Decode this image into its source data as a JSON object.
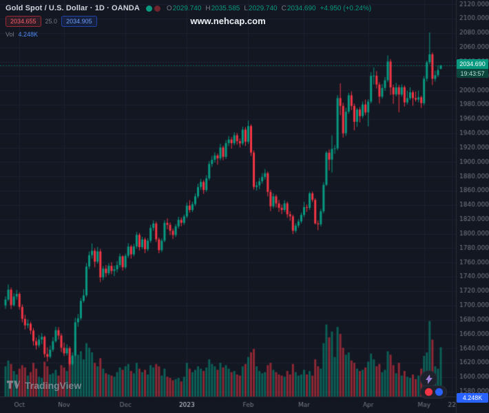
{
  "header": {
    "symbol_title": "Gold Spot / U.S. Dollar · 1D · OANDA",
    "ohlc": {
      "o_label": "O",
      "o": "2029.740",
      "h_label": "H",
      "h": "2035.585",
      "l_label": "L",
      "l": "2029.740",
      "c_label": "C",
      "c": "2034.690",
      "change": "+4.950 (+0.24%)"
    },
    "sell_price": "2034.655",
    "spread": "25.0",
    "buy_price": "2034.905",
    "vol_label": "Vol",
    "vol_value": "4.248K"
  },
  "watermark": "www.nehcap.com",
  "badges": {
    "last_price": "2034.690",
    "countdown": "19:43:57",
    "volume_axis": "4.248K"
  },
  "footer": {
    "logo_text": "TradingView"
  },
  "time_axis_labels": [
    {
      "label": "Oct",
      "i": 5,
      "bright": false
    },
    {
      "label": "Nov",
      "i": 21,
      "bright": false
    },
    {
      "label": "Dec",
      "i": 43,
      "bright": false
    },
    {
      "label": "2023",
      "i": 65,
      "bright": true
    },
    {
      "label": "Feb",
      "i": 87,
      "bright": false
    },
    {
      "label": "Mar",
      "i": 107,
      "bright": false
    },
    {
      "label": "Apr",
      "i": 130,
      "bright": false
    },
    {
      "label": "May",
      "i": 150,
      "bright": false
    },
    {
      "label": "22",
      "i": 160,
      "bright": false
    }
  ],
  "chart_data": {
    "type": "candlestick",
    "symbol": "XAUUSD",
    "interval": "1D",
    "exchange": "OANDA",
    "last_close": 2034.69,
    "price_axis": {
      "label_min": 1580,
      "label_max": 2120,
      "step": 20,
      "range": [
        1573,
        2126
      ],
      "decimals": 3
    },
    "volume_axis_max_k": 7,
    "colors": {
      "bg": "#131722",
      "up": "#089981",
      "down": "#f23645",
      "vol_up": "rgba(8,153,129,0.55)",
      "vol_down": "rgba(242,54,69,0.55)",
      "grid": "#1c2030",
      "axis_border": "#2a2e39",
      "axis_text": "#787b86",
      "axis_text_bright": "#d1d4dc",
      "accent_blue": "#2962ff"
    },
    "candles": [
      [
        1700.0,
        1712.5,
        1695.3,
        1708.2,
        2.6
      ],
      [
        1708.2,
        1729.4,
        1706.1,
        1722.0,
        3.1
      ],
      [
        1722.0,
        1724.8,
        1695.0,
        1700.3,
        2.8
      ],
      [
        1700.3,
        1717.2,
        1698.6,
        1712.4,
        2.2
      ],
      [
        1712.4,
        1721.9,
        1708.0,
        1716.1,
        1.9
      ],
      [
        1716.1,
        1718.3,
        1694.2,
        1698.0,
        2.4
      ],
      [
        1698.0,
        1701.5,
        1676.4,
        1681.2,
        2.7
      ],
      [
        1681.2,
        1686.9,
        1666.5,
        1672.3,
        2.5
      ],
      [
        1672.3,
        1680.7,
        1668.1,
        1674.5,
        1.8
      ],
      [
        1674.5,
        1677.2,
        1659.8,
        1665.0,
        2.1
      ],
      [
        1665.0,
        1668.4,
        1643.9,
        1650.2,
        2.9
      ],
      [
        1650.2,
        1655.1,
        1638.7,
        1644.3,
        2.4
      ],
      [
        1644.3,
        1658.6,
        1641.2,
        1652.4,
        1.7
      ],
      [
        1652.4,
        1661.5,
        1646.0,
        1656.2,
        1.6
      ],
      [
        1656.2,
        1658.0,
        1627.3,
        1632.1,
        3.0
      ],
      [
        1632.1,
        1641.6,
        1621.8,
        1628.4,
        2.6
      ],
      [
        1628.4,
        1644.0,
        1626.2,
        1638.3,
        1.9
      ],
      [
        1638.3,
        1655.8,
        1635.4,
        1650.1,
        2.0
      ],
      [
        1650.1,
        1670.3,
        1648.2,
        1665.4,
        2.3
      ],
      [
        1665.4,
        1669.8,
        1652.6,
        1658.0,
        1.8
      ],
      [
        1658.0,
        1661.2,
        1634.9,
        1641.0,
        2.7
      ],
      [
        1641.0,
        1648.3,
        1629.5,
        1633.2,
        2.5
      ],
      [
        1633.2,
        1645.7,
        1630.1,
        1640.4,
        2.2
      ],
      [
        1640.4,
        1642.9,
        1615.8,
        1618.3,
        3.4
      ],
      [
        1618.3,
        1634.6,
        1616.0,
        1630.2,
        3.1
      ],
      [
        1630.2,
        1682.8,
        1628.4,
        1676.5,
        4.8
      ],
      [
        1676.5,
        1688.1,
        1670.3,
        1682.0,
        3.6
      ],
      [
        1682.0,
        1710.4,
        1679.2,
        1706.3,
        3.9
      ],
      [
        1706.3,
        1722.6,
        1703.8,
        1714.1,
        3.2
      ],
      [
        1714.1,
        1758.9,
        1711.5,
        1754.2,
        4.6
      ],
      [
        1754.2,
        1775.3,
        1750.6,
        1770.1,
        4.2
      ],
      [
        1770.1,
        1786.5,
        1765.4,
        1776.2,
        3.8
      ],
      [
        1776.2,
        1779.8,
        1753.2,
        1761.0,
        2.9
      ],
      [
        1761.0,
        1781.7,
        1758.3,
        1775.4,
        2.6
      ],
      [
        1775.4,
        1778.9,
        1732.6,
        1739.2,
        3.3
      ],
      [
        1739.2,
        1755.0,
        1735.1,
        1751.3,
        2.4
      ],
      [
        1751.3,
        1756.4,
        1739.8,
        1745.0,
        2.0
      ],
      [
        1745.0,
        1758.7,
        1742.1,
        1755.2,
        1.9
      ],
      [
        1755.2,
        1760.3,
        1743.5,
        1748.1,
        1.8
      ],
      [
        1748.1,
        1755.6,
        1740.9,
        1750.4,
        1.7
      ],
      [
        1750.4,
        1761.8,
        1746.2,
        1756.3,
        2.1
      ],
      [
        1756.3,
        1772.5,
        1752.8,
        1768.4,
        2.5
      ],
      [
        1768.4,
        1770.1,
        1748.6,
        1753.2,
        2.3
      ],
      [
        1753.2,
        1772.4,
        1750.9,
        1769.3,
        2.6
      ],
      [
        1769.3,
        1786.8,
        1766.2,
        1782.1,
        2.8
      ],
      [
        1782.1,
        1784.6,
        1765.3,
        1771.2,
        2.2
      ],
      [
        1771.2,
        1785.9,
        1768.4,
        1782.3,
        2.0
      ],
      [
        1782.3,
        1802.6,
        1779.1,
        1798.4,
        2.9
      ],
      [
        1798.4,
        1801.2,
        1776.5,
        1781.3,
        2.4
      ],
      [
        1781.3,
        1795.8,
        1778.2,
        1792.1,
        2.1
      ],
      [
        1792.1,
        1794.7,
        1772.9,
        1778.3,
        2.3
      ],
      [
        1778.3,
        1793.5,
        1775.6,
        1790.2,
        1.9
      ],
      [
        1790.2,
        1812.4,
        1787.3,
        1808.1,
        2.7
      ],
      [
        1808.1,
        1818.6,
        1804.2,
        1814.3,
        2.5
      ],
      [
        1814.3,
        1816.9,
        1788.4,
        1792.2,
        2.8
      ],
      [
        1792.2,
        1794.8,
        1772.6,
        1777.1,
        2.6
      ],
      [
        1777.1,
        1793.4,
        1774.2,
        1790.3,
        1.8
      ],
      [
        1790.3,
        1818.7,
        1788.1,
        1815.2,
        2.4
      ],
      [
        1815.2,
        1821.5,
        1806.3,
        1812.4,
        1.7
      ],
      [
        1812.4,
        1815.8,
        1798.2,
        1804.1,
        1.6
      ],
      [
        1804.1,
        1807.3,
        1792.6,
        1798.2,
        1.4
      ],
      [
        1798.2,
        1813.5,
        1795.4,
        1810.3,
        1.5
      ],
      [
        1810.3,
        1823.6,
        1807.2,
        1819.4,
        1.6
      ],
      [
        1819.4,
        1822.8,
        1810.5,
        1815.2,
        1.3
      ],
      [
        1815.2,
        1826.9,
        1812.3,
        1824.1,
        1.7
      ],
      [
        1824.1,
        1843.5,
        1821.6,
        1839.2,
        2.9
      ],
      [
        1839.2,
        1846.8,
        1829.4,
        1833.1,
        2.4
      ],
      [
        1833.1,
        1844.7,
        1830.2,
        1841.3,
        2.1
      ],
      [
        1841.3,
        1856.4,
        1838.5,
        1852.2,
        2.3
      ],
      [
        1852.2,
        1869.8,
        1849.3,
        1865.1,
        2.6
      ],
      [
        1865.1,
        1876.5,
        1861.2,
        1872.3,
        2.4
      ],
      [
        1872.3,
        1874.9,
        1855.6,
        1861.0,
        2.2
      ],
      [
        1861.0,
        1881.6,
        1858.3,
        1877.2,
        2.5
      ],
      [
        1877.2,
        1901.4,
        1874.5,
        1897.3,
        3.2
      ],
      [
        1897.3,
        1908.7,
        1893.2,
        1903.1,
        2.8
      ],
      [
        1903.1,
        1913.5,
        1899.4,
        1909.2,
        2.6
      ],
      [
        1909.2,
        1911.8,
        1896.3,
        1905.1,
        2.3
      ],
      [
        1905.1,
        1925.4,
        1902.2,
        1920.3,
        2.9
      ],
      [
        1920.3,
        1922.7,
        1902.5,
        1907.2,
        2.5
      ],
      [
        1907.2,
        1930.6,
        1904.3,
        1926.4,
        2.7
      ],
      [
        1926.4,
        1936.2,
        1922.1,
        1931.3,
        2.4
      ],
      [
        1931.3,
        1934.8,
        1918.6,
        1926.2,
        2.1
      ],
      [
        1926.2,
        1941.5,
        1923.4,
        1937.3,
        2.2
      ],
      [
        1937.3,
        1940.6,
        1924.2,
        1929.1,
        1.9
      ],
      [
        1929.1,
        1932.8,
        1920.3,
        1926.0,
        1.8
      ],
      [
        1926.0,
        1949.3,
        1923.5,
        1945.2,
        2.6
      ],
      [
        1945.2,
        1948.7,
        1922.4,
        1928.3,
        2.8
      ],
      [
        1928.3,
        1957.8,
        1925.1,
        1950.2,
        3.4
      ],
      [
        1950.2,
        1952.6,
        1908.4,
        1913.1,
        3.8
      ],
      [
        1913.1,
        1916.3,
        1861.5,
        1865.2,
        4.1
      ],
      [
        1865.2,
        1872.6,
        1860.3,
        1867.4,
        2.6
      ],
      [
        1867.4,
        1877.9,
        1862.1,
        1873.2,
        2.2
      ],
      [
        1873.2,
        1884.5,
        1869.8,
        1879.1,
        2.0
      ],
      [
        1879.1,
        1890.2,
        1875.3,
        1884.4,
        2.1
      ],
      [
        1884.4,
        1886.8,
        1852.2,
        1858.3,
        2.7
      ],
      [
        1858.3,
        1861.5,
        1831.6,
        1838.2,
        2.9
      ],
      [
        1838.2,
        1856.4,
        1835.3,
        1852.1,
        2.3
      ],
      [
        1852.1,
        1854.7,
        1836.5,
        1842.3,
        2.1
      ],
      [
        1842.3,
        1847.2,
        1830.4,
        1836.1,
        1.9
      ],
      [
        1836.1,
        1840.6,
        1827.3,
        1833.2,
        1.8
      ],
      [
        1833.2,
        1846.8,
        1830.1,
        1842.4,
        1.7
      ],
      [
        1842.4,
        1844.9,
        1822.3,
        1827.1,
        2.2
      ],
      [
        1827.1,
        1831.4,
        1818.2,
        1824.3,
        1.9
      ],
      [
        1824.3,
        1826.7,
        1799.5,
        1804.2,
        2.8
      ],
      [
        1804.2,
        1814.6,
        1801.3,
        1811.4,
        2.1
      ],
      [
        1811.4,
        1820.3,
        1808.2,
        1817.1,
        1.8
      ],
      [
        1817.1,
        1829.5,
        1814.3,
        1826.2,
        1.9
      ],
      [
        1826.2,
        1844.5,
        1823.1,
        1837.2,
        2.3
      ],
      [
        1837.2,
        1840.8,
        1830.4,
        1836.1,
        1.9
      ],
      [
        1836.1,
        1858.6,
        1833.2,
        1856.3,
        2.2
      ],
      [
        1856.3,
        1858.9,
        1844.1,
        1847.2,
        1.8
      ],
      [
        1847.2,
        1849.6,
        1812.8,
        1814.3,
        3.2
      ],
      [
        1814.3,
        1818.4,
        1804.9,
        1813.1,
        2.6
      ],
      [
        1813.1,
        1834.7,
        1810.2,
        1831.3,
        2.4
      ],
      [
        1831.3,
        1871.9,
        1828.5,
        1868.2,
        4.6
      ],
      [
        1868.2,
        1915.3,
        1866.4,
        1913.1,
        6.2
      ],
      [
        1913.1,
        1917.6,
        1888.2,
        1903.4,
        5.1
      ],
      [
        1903.4,
        1937.3,
        1885.4,
        1918.2,
        5.6
      ],
      [
        1918.2,
        1923.7,
        1911.5,
        1919.1,
        3.4
      ],
      [
        1919.1,
        1993.4,
        1916.3,
        1989.2,
        6.0
      ],
      [
        1989.2,
        2009.7,
        1965.4,
        1978.3,
        5.4
      ],
      [
        1978.3,
        1982.6,
        1934.2,
        1940.1,
        4.2
      ],
      [
        1940.1,
        1975.8,
        1936.4,
        1970.2,
        3.6
      ],
      [
        1970.2,
        1996.5,
        1967.3,
        1993.1,
        3.8
      ],
      [
        1993.1,
        1998.4,
        1972.6,
        1978.2,
        3.1
      ],
      [
        1978.2,
        1981.5,
        1944.3,
        1956.1,
        2.9
      ],
      [
        1956.1,
        1975.4,
        1949.2,
        1973.2,
        2.4
      ],
      [
        1973.2,
        1976.8,
        1955.3,
        1964.1,
        2.2
      ],
      [
        1964.1,
        1984.6,
        1961.2,
        1980.3,
        2.3
      ],
      [
        1980.3,
        1987.2,
        1965.4,
        1969.2,
        2.5
      ],
      [
        1969.2,
        1987.5,
        1949.8,
        1984.3,
        3.0
      ],
      [
        1984.3,
        2025.4,
        1981.6,
        2020.2,
        3.7
      ],
      [
        2020.2,
        2032.1,
        2008.3,
        2020.4,
        3.2
      ],
      [
        2020.4,
        2026.8,
        2002.5,
        2008.1,
        2.6
      ],
      [
        2008.1,
        2011.3,
        1981.6,
        1991.2,
        2.8
      ],
      [
        1991.2,
        2008.7,
        1988.4,
        2003.3,
        2.1
      ],
      [
        2003.3,
        2018.6,
        1999.2,
        2014.1,
        2.3
      ],
      [
        2014.1,
        2048.7,
        2011.3,
        2040.2,
        3.9
      ],
      [
        2040.2,
        2043.5,
        1993.4,
        2004.1,
        3.6
      ],
      [
        2004.1,
        2007.8,
        1981.2,
        1994.3,
        2.7
      ],
      [
        1994.3,
        2010.4,
        1991.5,
        2004.2,
        2.0
      ],
      [
        2004.2,
        2007.6,
        1969.3,
        1994.1,
        2.9
      ],
      [
        1994.1,
        2008.3,
        1991.2,
        2004.3,
        1.8
      ],
      [
        2004.3,
        2006.9,
        1977.4,
        1983.2,
        2.2
      ],
      [
        1983.2,
        1999.6,
        1980.3,
        1989.1,
        1.7
      ],
      [
        1989.1,
        2004.2,
        1986.5,
        1997.3,
        1.6
      ],
      [
        1997.3,
        1999.8,
        1978.6,
        1989.2,
        1.9
      ],
      [
        1989.2,
        1998.4,
        1984.3,
        1987.1,
        1.5
      ],
      [
        1987.1,
        1999.5,
        1983.2,
        1990.3,
        1.8
      ],
      [
        1990.3,
        1992.6,
        1975.4,
        1982.1,
        2.4
      ],
      [
        1982.1,
        2019.8,
        1979.3,
        2016.2,
        3.5
      ],
      [
        2016.2,
        2041.6,
        2012.4,
        2039.1,
        3.8
      ],
      [
        2039.1,
        2080.7,
        2036.2,
        2050.3,
        6.5
      ],
      [
        2050.3,
        2052.8,
        2007.5,
        2016.1,
        4.9
      ],
      [
        2016.1,
        2027.4,
        2012.3,
        2021.2,
        2.6
      ],
      [
        2021.2,
        2034.6,
        2018.4,
        2028.3,
        2.4
      ],
      [
        2029.74,
        2035.585,
        2029.74,
        2034.69,
        4.248
      ]
    ]
  }
}
